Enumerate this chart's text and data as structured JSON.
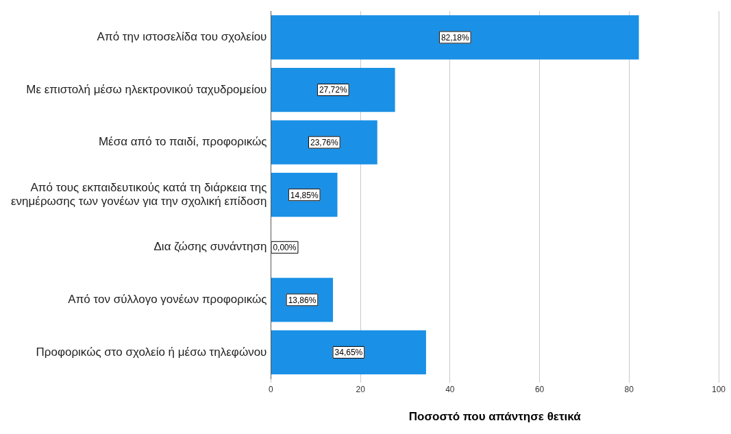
{
  "chart_data": {
    "type": "bar",
    "orientation": "horizontal",
    "xlabel": "Ποσοστό που απάντησε θετικά",
    "categories": [
      "Από την ιστοσελίδα του σχολείου",
      "Με επιστολή μέσω ηλεκτρονικού ταχυδρομείου",
      "Μέσα από το παιδί, προφορικώς",
      "Από τους εκπαιδευτικούς κατά τη διάρκεια της ενημέρωσης των γονέων για την σχολική επίδοση",
      "Δια ζώσης συνάντηση",
      "Από τον σύλλογο γονέων προφορικώς",
      "Προφορικώς στο σχολείο ή μέσω τηλεφώνου"
    ],
    "values": [
      82.18,
      27.72,
      23.76,
      14.85,
      0,
      13.86,
      34.65
    ],
    "value_labels": [
      "82,18%",
      "27,72%",
      "23,76%",
      "14,85%",
      "0,00%",
      "13,86%",
      "34,65%"
    ],
    "color": "#1a90e6",
    "xlim": [
      0,
      100
    ],
    "xticks": [
      0,
      20,
      40,
      60,
      80,
      100
    ],
    "grid": "x",
    "legend": false
  }
}
